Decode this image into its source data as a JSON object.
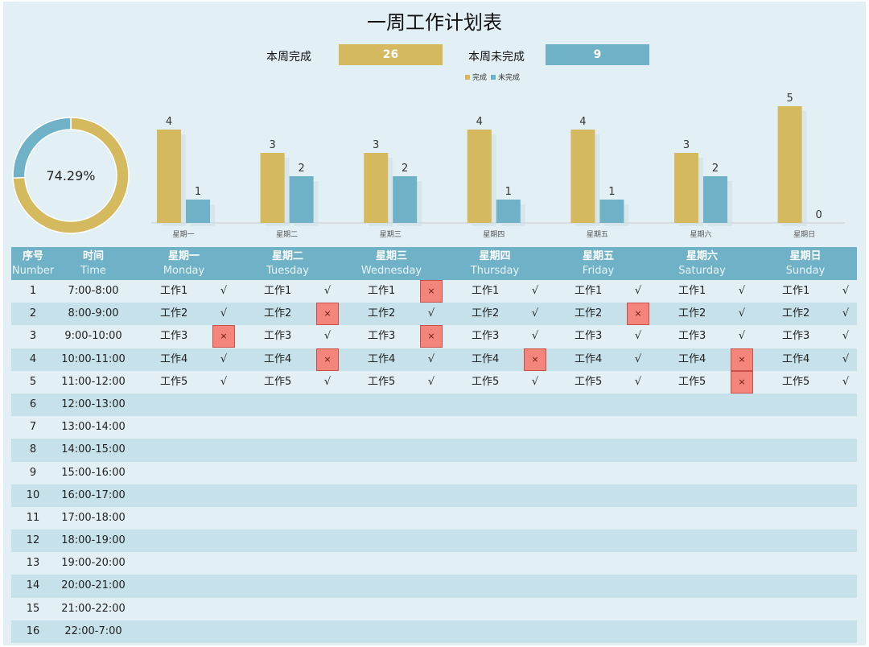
{
  "title": "一周工作计划表",
  "summary": {
    "done_label": "本周完成",
    "done_value": "26",
    "undone_label": "本周未完成",
    "undone_value": "9"
  },
  "legend": {
    "done": "完成",
    "undone": "未完成"
  },
  "colors": {
    "done": "#d4b95e",
    "undone": "#6fb2c8",
    "header": "#6fb2c8",
    "x_mark": "#f4857a"
  },
  "chart_data": [
    {
      "type": "pie",
      "variant": "donut",
      "center_label": "74.29%",
      "slices": [
        {
          "name": "完成",
          "value": 26
        },
        {
          "name": "未完成",
          "value": 9
        }
      ]
    },
    {
      "type": "bar",
      "categories": [
        "星期一",
        "星期二",
        "星期三",
        "星期四",
        "星期五",
        "星期六",
        "星期日"
      ],
      "series": [
        {
          "name": "完成",
          "values": [
            4,
            3,
            3,
            4,
            4,
            3,
            5
          ]
        },
        {
          "name": "未完成",
          "values": [
            1,
            2,
            2,
            1,
            1,
            2,
            0
          ]
        }
      ],
      "ylim": [
        0,
        5
      ]
    }
  ],
  "table": {
    "headers": [
      {
        "zh": "序号",
        "en": "Number"
      },
      {
        "zh": "时间",
        "en": "Time"
      },
      {
        "zh": "星期一",
        "en": "Monday"
      },
      {
        "zh": "星期二",
        "en": "Tuesday"
      },
      {
        "zh": "星期三",
        "en": "Wednesday"
      },
      {
        "zh": "星期四",
        "en": "Thursday"
      },
      {
        "zh": "星期五",
        "en": "Friday"
      },
      {
        "zh": "星期六",
        "en": "Saturday"
      },
      {
        "zh": "星期日",
        "en": "Sunday"
      }
    ],
    "check": "√",
    "cross": "×",
    "rows": [
      {
        "num": "1",
        "time": "7:00-8:00",
        "tasks": [
          [
            "工作1",
            "√"
          ],
          [
            "工作1",
            "√"
          ],
          [
            "工作1",
            "×"
          ],
          [
            "工作1",
            "√"
          ],
          [
            "工作1",
            "√"
          ],
          [
            "工作1",
            "√"
          ],
          [
            "工作1",
            "√"
          ]
        ]
      },
      {
        "num": "2",
        "time": "8:00-9:00",
        "tasks": [
          [
            "工作2",
            "√"
          ],
          [
            "工作2",
            "×"
          ],
          [
            "工作2",
            "√"
          ],
          [
            "工作2",
            "√"
          ],
          [
            "工作2",
            "×"
          ],
          [
            "工作2",
            "√"
          ],
          [
            "工作2",
            "√"
          ]
        ]
      },
      {
        "num": "3",
        "time": "9:00-10:00",
        "tasks": [
          [
            "工作3",
            "×"
          ],
          [
            "工作3",
            "√"
          ],
          [
            "工作3",
            "×"
          ],
          [
            "工作3",
            "√"
          ],
          [
            "工作3",
            "√"
          ],
          [
            "工作3",
            "√"
          ],
          [
            "工作3",
            "√"
          ]
        ]
      },
      {
        "num": "4",
        "time": "10:00-11:00",
        "tasks": [
          [
            "工作4",
            "√"
          ],
          [
            "工作4",
            "×"
          ],
          [
            "工作4",
            "√"
          ],
          [
            "工作4",
            "×"
          ],
          [
            "工作4",
            "√"
          ],
          [
            "工作4",
            "×"
          ],
          [
            "工作4",
            "√"
          ]
        ]
      },
      {
        "num": "5",
        "time": "11:00-12:00",
        "tasks": [
          [
            "工作5",
            "√"
          ],
          [
            "工作5",
            "√"
          ],
          [
            "工作5",
            "√"
          ],
          [
            "工作5",
            "√"
          ],
          [
            "工作5",
            "√"
          ],
          [
            "工作5",
            "×"
          ],
          [
            "工作5",
            "√"
          ]
        ]
      },
      {
        "num": "6",
        "time": "12:00-13:00",
        "tasks": []
      },
      {
        "num": "7",
        "time": "13:00-14:00",
        "tasks": []
      },
      {
        "num": "8",
        "time": "14:00-15:00",
        "tasks": []
      },
      {
        "num": "9",
        "time": "15:00-16:00",
        "tasks": []
      },
      {
        "num": "10",
        "time": "16:00-17:00",
        "tasks": []
      },
      {
        "num": "11",
        "time": "17:00-18:00",
        "tasks": []
      },
      {
        "num": "12",
        "time": "18:00-19:00",
        "tasks": []
      },
      {
        "num": "13",
        "time": "19:00-20:00",
        "tasks": []
      },
      {
        "num": "14",
        "time": "20:00-21:00",
        "tasks": []
      },
      {
        "num": "15",
        "time": "21:00-22:00",
        "tasks": []
      },
      {
        "num": "16",
        "time": "22:00-7:00",
        "tasks": []
      }
    ]
  }
}
